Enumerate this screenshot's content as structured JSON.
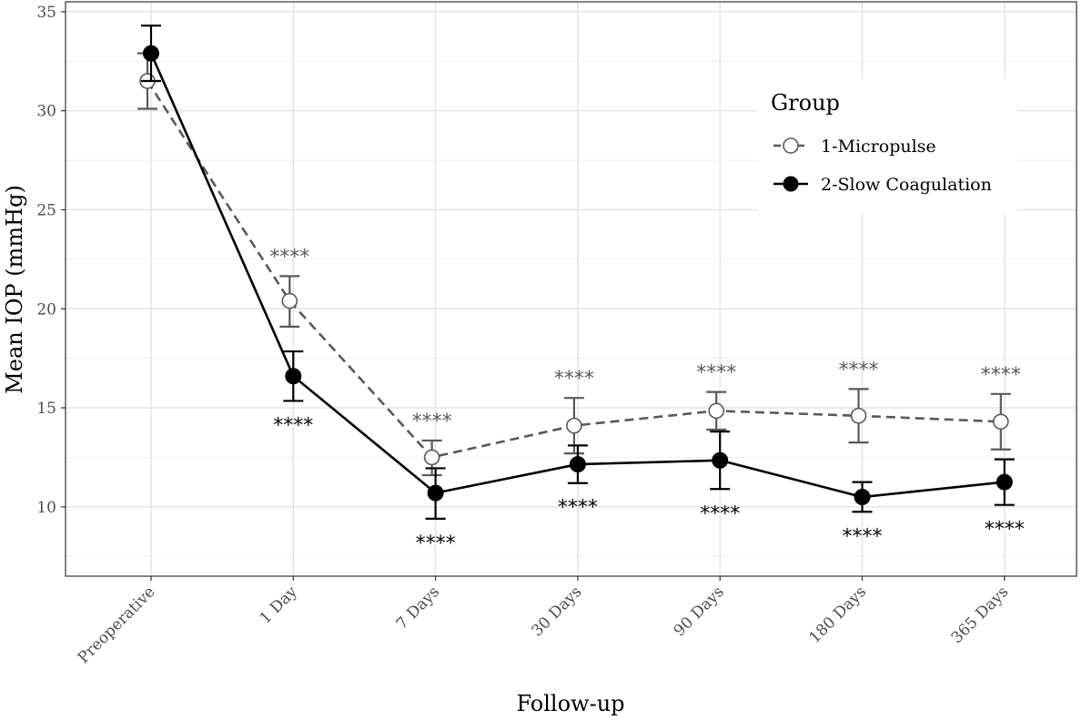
{
  "chart_data": {
    "type": "line",
    "categories": [
      "Preoperative",
      "1 Day",
      "7 Days",
      "30 Days",
      "90 Days",
      "180 Days",
      "365 Days"
    ],
    "xlabel": "Follow-up",
    "ylabel": "Mean IOP (mmHg)",
    "ylim": [
      6.5,
      35.5
    ],
    "yticks": [
      10,
      15,
      20,
      25,
      30,
      35
    ],
    "grid": true,
    "legend": {
      "title": "Group",
      "placement": "top-right"
    },
    "series": [
      {
        "name": "1-Micropulse",
        "style": "dashed",
        "marker": "open-circle",
        "color": "#595959",
        "values": [
          31.5,
          20.4,
          12.5,
          14.1,
          14.85,
          14.6,
          14.3
        ],
        "lower": [
          30.1,
          19.1,
          11.6,
          12.7,
          13.9,
          13.25,
          12.9
        ],
        "upper": [
          32.9,
          21.65,
          13.35,
          15.5,
          15.8,
          15.95,
          15.7
        ],
        "annotations": [
          "",
          "****",
          "****",
          "****",
          "****",
          "****",
          "****"
        ]
      },
      {
        "name": "2-Slow Coagulation",
        "style": "solid",
        "marker": "filled-circle",
        "color": "#000000",
        "values": [
          32.9,
          16.6,
          10.7,
          12.15,
          12.35,
          10.5,
          11.25
        ],
        "lower": [
          31.5,
          15.35,
          9.4,
          11.2,
          10.9,
          9.75,
          10.1
        ],
        "upper": [
          34.3,
          17.85,
          11.95,
          13.1,
          13.8,
          11.25,
          12.4
        ],
        "annotations": [
          "",
          "****",
          "****",
          "****",
          "****",
          "****",
          "****"
        ]
      }
    ]
  }
}
